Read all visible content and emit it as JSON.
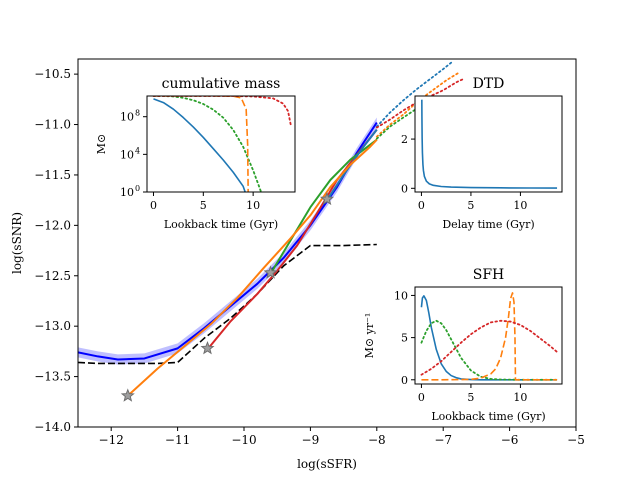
{
  "chart_data": [
    {
      "id": "main",
      "type": "line",
      "xlabel": "log(sSFR)",
      "ylabel": "log(sSNR)",
      "xlim": [
        -12.5,
        -5
      ],
      "ylim": [
        -14,
        -10.35
      ],
      "xticks": [
        -12,
        -11,
        -10,
        -9,
        -8,
        -7,
        -6,
        -5
      ],
      "yticks": [
        -14.0,
        -13.5,
        -13.0,
        -12.5,
        -12.0,
        -11.5,
        -11.0,
        -10.5
      ],
      "xtick_labels": [
        "−12",
        "−11",
        "−10",
        "−9",
        "−8",
        "−7",
        "−6",
        "−5"
      ],
      "ytick_labels": [
        "−14.0",
        "−13.5",
        "−13.0",
        "−12.5",
        "−12.0",
        "−11.5",
        "−11.0",
        "−10.5"
      ],
      "grid": false,
      "series": [
        {
          "style": "blue-band",
          "color": "#0000ff",
          "x": [
            -12.5,
            -12.2,
            -11.9,
            -11.5,
            -11.0,
            -10.6,
            -10.2,
            -9.8,
            -9.4,
            -9.0,
            -8.6,
            -8.3,
            -8.0
          ],
          "y": [
            -13.26,
            -13.3,
            -13.33,
            -13.32,
            -13.22,
            -13.02,
            -12.8,
            -12.58,
            -12.32,
            -12.0,
            -11.62,
            -11.28,
            -10.98
          ],
          "band": 0.05
        },
        {
          "style": "black-dashed",
          "color": "#000000",
          "x": [
            -12.5,
            -12.2,
            -11.8,
            -11.3,
            -11.0,
            -10.6,
            -10.2,
            -9.8,
            -9.4,
            -9.0,
            -8.5,
            -8.0
          ],
          "y": [
            -13.36,
            -13.37,
            -13.37,
            -13.37,
            -13.36,
            -13.12,
            -12.92,
            -12.68,
            -12.4,
            -12.2,
            -12.2,
            -12.19
          ]
        },
        {
          "style": "solid",
          "color": "#d62728",
          "x": [
            -10.55,
            -10.2,
            -9.8,
            -9.5,
            -9.2,
            -8.9,
            -8.6,
            -8.3,
            -8.0
          ],
          "y": [
            -13.23,
            -12.95,
            -12.68,
            -12.45,
            -12.2,
            -11.88,
            -11.55,
            -11.3,
            -11.05
          ]
        },
        {
          "style": "solid",
          "color": "#2ca02c",
          "x": [
            -9.6,
            -9.3,
            -9.0,
            -8.7,
            -8.4,
            -8.0
          ],
          "y": [
            -12.48,
            -12.15,
            -11.82,
            -11.55,
            -11.35,
            -11.15
          ]
        },
        {
          "style": "solid",
          "color": "#1f77b4",
          "x": [
            -8.75,
            -8.5,
            -8.2,
            -8.0
          ],
          "y": [
            -11.75,
            -11.5,
            -11.22,
            -11.05
          ]
        },
        {
          "style": "solid",
          "color": "#ff7f0e",
          "x": [
            -11.75,
            -11.3,
            -10.9,
            -10.5,
            -10.1,
            -9.7,
            -9.3,
            -9.0,
            -8.7,
            -8.4,
            -8.1,
            -8.0
          ],
          "y": [
            -13.69,
            -13.42,
            -13.2,
            -12.98,
            -12.72,
            -12.42,
            -12.13,
            -11.9,
            -11.62,
            -11.4,
            -11.22,
            -11.15
          ]
        },
        {
          "style": "dotted",
          "color": "#1f77b4",
          "x": [
            -8.0,
            -7.8,
            -7.6,
            -7.4,
            -7.2,
            -7.0,
            -6.85
          ],
          "y": [
            -11.02,
            -10.88,
            -10.76,
            -10.65,
            -10.55,
            -10.45,
            -10.37
          ]
        },
        {
          "style": "dotted",
          "color": "#ff7f0e",
          "x": [
            -8.0,
            -7.8,
            -7.6,
            -7.4,
            -7.2,
            -6.95,
            -6.75
          ],
          "y": [
            -11.12,
            -11.0,
            -10.9,
            -10.78,
            -10.68,
            -10.56,
            -10.48
          ]
        },
        {
          "style": "dotted",
          "color": "#2ca02c",
          "x": [
            -8.0,
            -7.8,
            -7.6,
            -7.3
          ],
          "y": [
            -11.14,
            -11.02,
            -10.93,
            -10.8
          ]
        },
        {
          "style": "dotted",
          "color": "#d62728",
          "x": [
            -8.0,
            -7.8,
            -7.6,
            -7.4,
            -7.2,
            -7.0,
            -6.8,
            -6.7
          ],
          "y": [
            -11.03,
            -10.95,
            -10.86,
            -10.78,
            -10.72,
            -10.66,
            -10.58,
            -10.55
          ]
        }
      ],
      "markers": [
        {
          "x": -11.75,
          "y": -13.69
        },
        {
          "x": -10.55,
          "y": -13.22
        },
        {
          "x": -9.6,
          "y": -12.47
        },
        {
          "x": -8.75,
          "y": -11.74
        }
      ]
    },
    {
      "id": "cumulative",
      "type": "line",
      "title": "cumulative mass",
      "xlabel": "Lookback time (Gyr)",
      "ylabel": "M⊙",
      "xlim": [
        -0.65,
        14.2
      ],
      "ylim": [
        0,
        10.2
      ],
      "yscale": "log",
      "xticks": [
        0,
        5,
        10
      ],
      "xtick_labels": [
        "0",
        "5",
        "10"
      ],
      "yticks": [
        0,
        4,
        8
      ],
      "ytick_labels": [
        "10",
        "10",
        "10"
      ],
      "ytick_exponents": [
        "0",
        "4",
        "8"
      ],
      "series": [
        {
          "style": "solid",
          "color": "#1f77b4",
          "x": [
            0,
            1,
            2,
            3,
            4,
            5,
            6,
            7,
            8,
            9,
            9.2
          ],
          "y": [
            9.9,
            9.5,
            8.8,
            7.9,
            6.9,
            5.8,
            4.6,
            3.4,
            2.1,
            0.6,
            0
          ]
        },
        {
          "style": "dotted",
          "color": "#2ca02c",
          "x": [
            0,
            1,
            2,
            3,
            4,
            5,
            6,
            7,
            8,
            9,
            10,
            10.8
          ],
          "y": [
            10.2,
            10.2,
            10.15,
            10.0,
            9.75,
            9.35,
            8.75,
            7.9,
            6.6,
            4.8,
            2.3,
            0
          ]
        },
        {
          "style": "dashed",
          "color": "#ff7f0e",
          "x": [
            0,
            2,
            4,
            6,
            8,
            8.8,
            9.3,
            9.45,
            9.5
          ],
          "y": [
            10.2,
            10.2,
            10.2,
            10.2,
            10.18,
            10.0,
            8.8,
            5,
            0
          ]
        },
        {
          "style": "dotted",
          "color": "#d62728",
          "x": [
            0,
            4,
            8,
            10,
            12,
            13,
            13.5,
            13.8
          ],
          "y": [
            10.2,
            10.2,
            10.2,
            10.15,
            9.95,
            9.4,
            8.6,
            7.0
          ]
        }
      ]
    },
    {
      "id": "dtd",
      "type": "line",
      "title": "DTD",
      "xlabel": "Delay time (Gyr)",
      "ylabel": "",
      "xlim": [
        -0.65,
        14.2
      ],
      "ylim": [
        -0.15,
        3.75
      ],
      "xticks": [
        0,
        5,
        10
      ],
      "xtick_labels": [
        "0",
        "5",
        "10"
      ],
      "yticks": [
        0,
        2
      ],
      "ytick_labels": [
        "0",
        "2"
      ],
      "series": [
        {
          "style": "solid",
          "color": "#1f77b4",
          "x": [
            0.04,
            0.05,
            0.07,
            0.1,
            0.15,
            0.2,
            0.3,
            0.5,
            0.8,
            1.2,
            2,
            3,
            5,
            8,
            11,
            13.7
          ],
          "y": [
            3.6,
            2.9,
            2.05,
            1.45,
            0.97,
            0.73,
            0.48,
            0.29,
            0.18,
            0.12,
            0.073,
            0.049,
            0.029,
            0.018,
            0.013,
            0.011
          ]
        }
      ]
    },
    {
      "id": "sfh",
      "type": "line",
      "title": "SFH",
      "xlabel": "Lookback time (Gyr)",
      "ylabel": "M⊙ yr⁻¹",
      "xlim": [
        -0.65,
        14.2
      ],
      "ylim": [
        -0.5,
        11
      ],
      "xticks": [
        0,
        5,
        10
      ],
      "xtick_labels": [
        "0",
        "5",
        "10"
      ],
      "yticks": [
        0,
        5,
        10
      ],
      "ytick_labels": [
        "0",
        "5",
        "10"
      ],
      "series": [
        {
          "style": "solid",
          "color": "#1f77b4",
          "x": [
            0,
            0.1,
            0.25,
            0.5,
            0.75,
            1,
            1.5,
            2,
            2.5,
            3,
            3.5,
            4,
            5,
            6,
            8,
            10,
            13.7
          ],
          "y": [
            8.6,
            9.7,
            9.95,
            9.4,
            7.9,
            6.2,
            3.6,
            1.9,
            1.0,
            0.5,
            0.25,
            0.1,
            0.02,
            0,
            0,
            0,
            0
          ]
        },
        {
          "style": "dotted",
          "color": "#2ca02c",
          "x": [
            0,
            0.5,
            1,
            1.5,
            2,
            2.5,
            3,
            3.5,
            4,
            5,
            6,
            7,
            8,
            10,
            13.7
          ],
          "y": [
            4.4,
            5.8,
            6.7,
            7.0,
            6.7,
            5.9,
            4.8,
            3.7,
            2.6,
            1.1,
            0.35,
            0.1,
            0.03,
            0,
            0
          ]
        },
        {
          "style": "dashed",
          "color": "#ff7f0e",
          "x": [
            0,
            2,
            4,
            5,
            6,
            7,
            7.5,
            8,
            8.5,
            8.8,
            9.0,
            9.2,
            9.35,
            9.45,
            9.5,
            9.6,
            13.7
          ],
          "y": [
            0,
            0,
            0.02,
            0.05,
            0.2,
            0.7,
            1.3,
            2.6,
            5.0,
            7.5,
            9.6,
            10.3,
            9.2,
            5.0,
            0,
            0,
            0
          ]
        },
        {
          "style": "dotted",
          "color": "#d62728",
          "x": [
            0,
            1,
            2,
            3,
            4,
            5,
            6,
            7,
            8,
            9,
            10,
            11,
            12,
            13,
            13.7
          ],
          "y": [
            0.6,
            1.3,
            2.2,
            3.3,
            4.4,
            5.4,
            6.2,
            6.8,
            7.0,
            6.9,
            6.5,
            5.8,
            4.9,
            4.0,
            3.3
          ]
        }
      ]
    }
  ]
}
